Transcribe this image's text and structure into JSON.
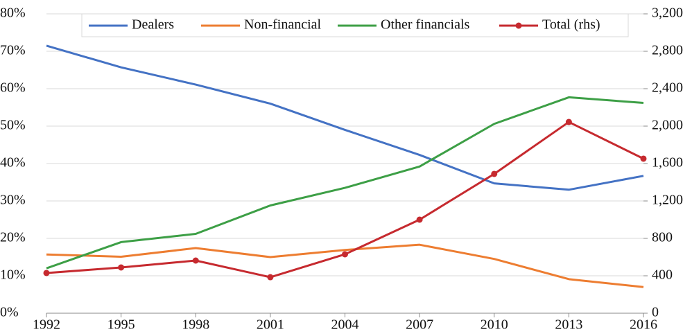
{
  "chart_data": {
    "type": "line",
    "x": [
      1992,
      1995,
      1998,
      2001,
      2004,
      2007,
      2010,
      2013,
      2016
    ],
    "xlim": [
      1992,
      2016
    ],
    "xticks": [
      1992,
      1995,
      1998,
      2001,
      2004,
      2007,
      2010,
      2013,
      2016
    ],
    "ylim": [
      0,
      80
    ],
    "yticks": [
      {
        "value": 0,
        "label": "0%"
      },
      {
        "value": 10,
        "label": "10%"
      },
      {
        "value": 20,
        "label": "20%"
      },
      {
        "value": 30,
        "label": "30%"
      },
      {
        "value": 40,
        "label": "40%"
      },
      {
        "value": 50,
        "label": "50%"
      },
      {
        "value": 60,
        "label": "60%"
      },
      {
        "value": 70,
        "label": "70%"
      },
      {
        "value": 80,
        "label": "80%"
      }
    ],
    "y2lim": [
      0,
      3200
    ],
    "y2ticks": [
      0,
      400,
      800,
      {
        "value": 1200,
        "label": "1,200"
      },
      {
        "value": 1600,
        "label": "1,600"
      },
      {
        "value": 2000,
        "label": "2,000"
      },
      {
        "value": 2400,
        "label": "2,400"
      },
      {
        "value": 2800,
        "label": "2,800"
      },
      {
        "value": 3200,
        "label": "3,200"
      }
    ],
    "grid": true,
    "legend": "top",
    "series": [
      {
        "name": "Dealers",
        "color": "#4472c4",
        "values": [
          71.5,
          65.7,
          61.1,
          56,
          49,
          42.3,
          34.7,
          33,
          36.7
        ]
      },
      {
        "name": "Non-financial",
        "color": "#ed7d31",
        "values": [
          15.7,
          15.1,
          17.4,
          15,
          16.9,
          18.3,
          14.5,
          9.1,
          7.0
        ]
      },
      {
        "name": "Other financials",
        "color": "#3d9f46",
        "values": [
          12,
          19,
          21.2,
          28.8,
          33.5,
          39.2,
          50.6,
          57.7,
          56.2
        ]
      },
      {
        "name": "Total (rhs)",
        "color": "#c62a2f",
        "axis": "y2",
        "values": [
          430,
          489,
          563,
          385,
          630,
          1000,
          1489,
          2044,
          1652
        ]
      }
    ]
  }
}
